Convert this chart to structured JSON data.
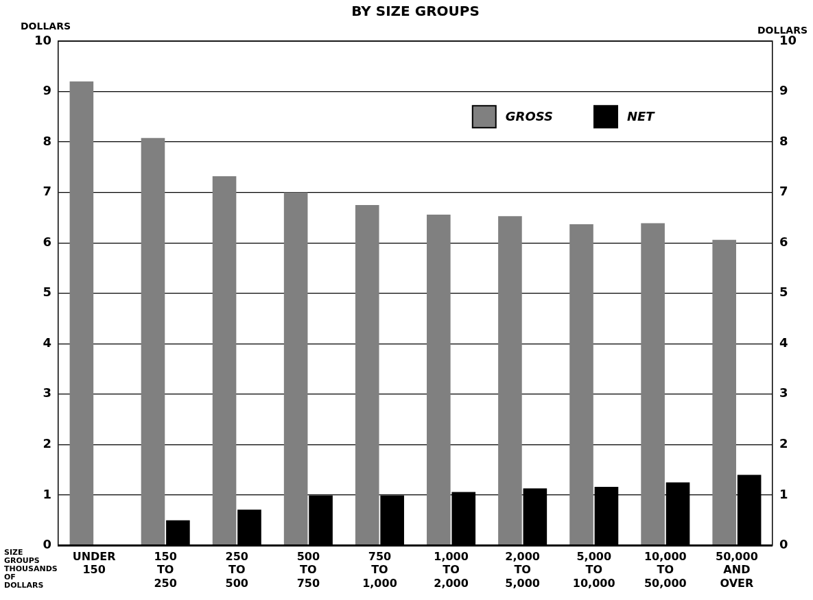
{
  "chart_data": {
    "type": "bar",
    "title": "BY SIZE GROUPS",
    "ylabel": "DOLLARS",
    "y2label": "DOLLARS",
    "xlabel": "SIZE GROUPS\nTHOUSANDS OF DOLLARS",
    "categories": [
      "UNDER\n150",
      "150\nTO\n250",
      "250\nTO\n500",
      "500\nTO\n750",
      "750\nTO\n1,000",
      "1,000\nTO\n2,000",
      "2,000\nTO\n5,000",
      "5,000\nTO\n10,000",
      "10,000\nTO\n50,000",
      "50,000\nAND\nOVER"
    ],
    "series": [
      {
        "name": "GROSS",
        "color": "#808080",
        "values": [
          9.2,
          8.08,
          7.32,
          7.0,
          6.75,
          6.56,
          6.53,
          6.37,
          6.39,
          6.06
        ]
      },
      {
        "name": "NET",
        "color": "#000000",
        "values": [
          0.02,
          0.5,
          0.71,
          0.99,
          0.99,
          1.06,
          1.13,
          1.16,
          1.25,
          1.4
        ]
      }
    ],
    "ylim": [
      0,
      10
    ],
    "yticks": [
      0,
      1,
      2,
      3,
      4,
      5,
      6,
      7,
      8,
      9,
      10
    ],
    "y2lim": [
      0,
      10
    ],
    "y2ticks": [
      0,
      1,
      2,
      3,
      4,
      5,
      6,
      7,
      8,
      9,
      10
    ],
    "grid": "y",
    "legend": "top right"
  }
}
